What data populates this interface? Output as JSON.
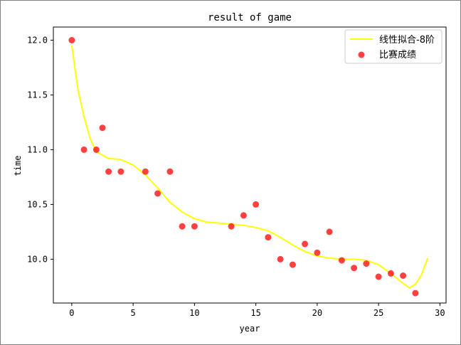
{
  "chart_data": {
    "type": "scatter",
    "title": "result of game",
    "xlabel": "year",
    "ylabel": "time",
    "xlim": [
      -1.5,
      30.5
    ],
    "ylim": [
      9.6,
      12.12
    ],
    "x_ticks": [
      0,
      5,
      10,
      15,
      20,
      25,
      30
    ],
    "x_tick_labels": [
      "0",
      "5",
      "10",
      "15",
      "20",
      "25",
      "30"
    ],
    "y_ticks": [
      10.0,
      10.5,
      11.0,
      11.5,
      12.0
    ],
    "y_tick_labels": [
      "10.0",
      "10.5",
      "11.0",
      "11.5",
      "12.0"
    ],
    "grid": false,
    "legend_position": "top-right",
    "series": [
      {
        "name": "线性拟合-8阶",
        "type": "line",
        "color": "#ffff00",
        "x": [
          0,
          0.5,
          1,
          1.5,
          2,
          3,
          4,
          5,
          6,
          7,
          8,
          9,
          10,
          11,
          12,
          13,
          14,
          15,
          16,
          17,
          18,
          19,
          20,
          21,
          22,
          23,
          24,
          25,
          26,
          27,
          27.5,
          28,
          28.5,
          29
        ],
        "y": [
          11.95,
          11.55,
          11.3,
          11.1,
          10.98,
          10.92,
          10.91,
          10.86,
          10.77,
          10.65,
          10.52,
          10.43,
          10.37,
          10.34,
          10.33,
          10.32,
          10.31,
          10.29,
          10.26,
          10.2,
          10.13,
          10.07,
          10.03,
          10.01,
          10.0,
          10.0,
          9.99,
          9.95,
          9.87,
          9.78,
          9.74,
          9.77,
          9.86,
          10.01
        ]
      },
      {
        "name": "比赛成绩",
        "type": "scatter",
        "color": "#ff0000",
        "x": [
          0,
          1,
          2,
          2.5,
          3,
          4,
          6,
          7,
          8,
          9,
          10,
          13,
          14,
          15,
          16,
          17,
          18,
          19,
          20,
          21,
          22,
          23,
          24,
          25,
          26,
          27,
          28
        ],
        "y": [
          12.0,
          11.0,
          11.0,
          11.2,
          10.8,
          10.8,
          10.8,
          10.6,
          10.8,
          10.3,
          10.3,
          10.3,
          10.4,
          10.5,
          10.2,
          10.0,
          9.95,
          10.14,
          10.06,
          10.25,
          9.99,
          9.92,
          9.96,
          9.84,
          9.87,
          9.85,
          9.69
        ]
      }
    ]
  }
}
